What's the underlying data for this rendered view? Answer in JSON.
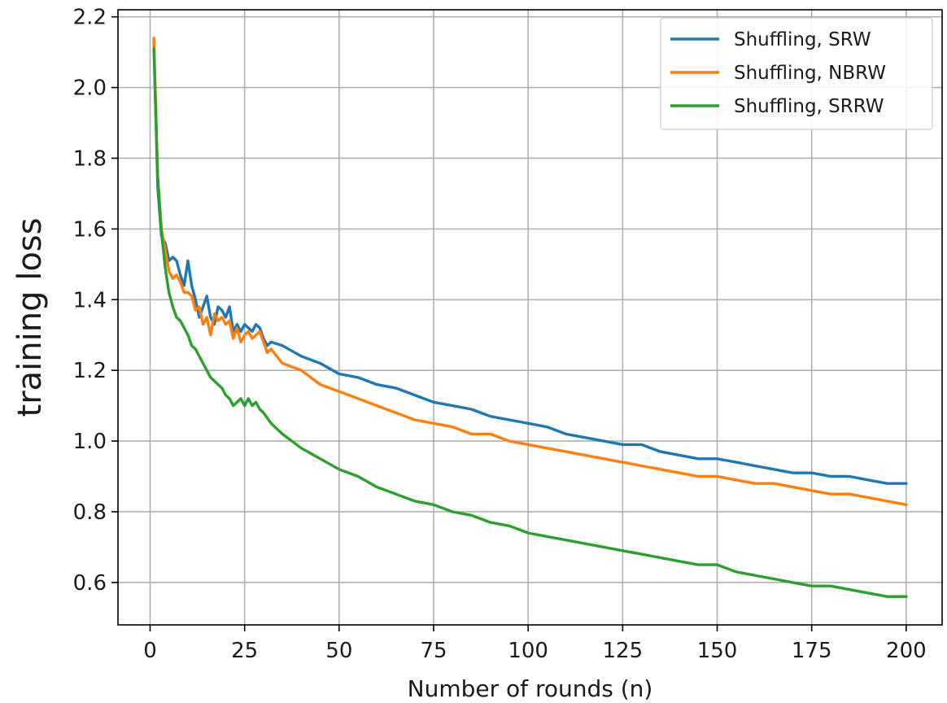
{
  "chart_data": {
    "type": "line",
    "title": "",
    "xlabel": "Number of rounds (n)",
    "ylabel": "training loss",
    "xlim": [
      -8.5,
      209.5
    ],
    "ylim": [
      0.48,
      2.22
    ],
    "xticks": [
      0,
      25,
      50,
      75,
      100,
      125,
      150,
      175,
      200
    ],
    "xtick_labels": [
      "0",
      "25",
      "50",
      "75",
      "100",
      "125",
      "150",
      "175",
      "200"
    ],
    "yticks": [
      0.6,
      0.8,
      1.0,
      1.2,
      1.4,
      1.6,
      1.8,
      2.0,
      2.2
    ],
    "ytick_labels": [
      "0.6",
      "0.8",
      "1.0",
      "1.2",
      "1.4",
      "1.6",
      "1.8",
      "2.0",
      "2.2"
    ],
    "grid": true,
    "legend_position": "top-right",
    "series": [
      {
        "name": "Shuffling, SRW",
        "color": "#1f77b4",
        "x": [
          1,
          2,
          3,
          4,
          5,
          6,
          7,
          8,
          9,
          10,
          11,
          12,
          13,
          14,
          15,
          16,
          17,
          18,
          19,
          20,
          21,
          22,
          23,
          24,
          25,
          26,
          27,
          28,
          29,
          30,
          31,
          32,
          35,
          40,
          45,
          50,
          55,
          60,
          65,
          70,
          75,
          80,
          85,
          90,
          95,
          100,
          105,
          110,
          115,
          120,
          125,
          130,
          135,
          140,
          145,
          150,
          155,
          160,
          165,
          170,
          175,
          180,
          185,
          190,
          195,
          200
        ],
        "y": [
          2.13,
          1.72,
          1.58,
          1.56,
          1.51,
          1.52,
          1.51,
          1.47,
          1.44,
          1.51,
          1.44,
          1.4,
          1.35,
          1.38,
          1.41,
          1.35,
          1.33,
          1.38,
          1.37,
          1.35,
          1.38,
          1.31,
          1.33,
          1.31,
          1.33,
          1.32,
          1.31,
          1.33,
          1.32,
          1.29,
          1.27,
          1.28,
          1.27,
          1.24,
          1.22,
          1.19,
          1.18,
          1.16,
          1.15,
          1.13,
          1.11,
          1.1,
          1.09,
          1.07,
          1.06,
          1.05,
          1.04,
          1.02,
          1.01,
          1.0,
          0.99,
          0.99,
          0.97,
          0.96,
          0.95,
          0.95,
          0.94,
          0.93,
          0.92,
          0.91,
          0.91,
          0.9,
          0.9,
          0.89,
          0.88,
          0.88
        ]
      },
      {
        "name": "Shuffling, NBRW",
        "color": "#ff7f0e",
        "x": [
          1,
          2,
          3,
          4,
          5,
          6,
          7,
          8,
          9,
          10,
          11,
          12,
          13,
          14,
          15,
          16,
          17,
          18,
          19,
          20,
          21,
          22,
          23,
          24,
          25,
          26,
          27,
          28,
          29,
          30,
          31,
          32,
          35,
          40,
          45,
          50,
          55,
          60,
          65,
          70,
          75,
          80,
          85,
          90,
          95,
          100,
          105,
          110,
          115,
          120,
          125,
          130,
          135,
          140,
          145,
          150,
          155,
          160,
          165,
          170,
          175,
          180,
          185,
          190,
          195,
          200
        ],
        "y": [
          2.14,
          1.75,
          1.6,
          1.54,
          1.48,
          1.46,
          1.47,
          1.45,
          1.42,
          1.42,
          1.41,
          1.37,
          1.38,
          1.33,
          1.35,
          1.3,
          1.36,
          1.34,
          1.35,
          1.33,
          1.34,
          1.29,
          1.32,
          1.28,
          1.3,
          1.31,
          1.29,
          1.3,
          1.31,
          1.28,
          1.25,
          1.26,
          1.22,
          1.2,
          1.16,
          1.14,
          1.12,
          1.1,
          1.08,
          1.06,
          1.05,
          1.04,
          1.02,
          1.02,
          1.0,
          0.99,
          0.98,
          0.97,
          0.96,
          0.95,
          0.94,
          0.93,
          0.92,
          0.91,
          0.9,
          0.9,
          0.89,
          0.88,
          0.88,
          0.87,
          0.86,
          0.85,
          0.85,
          0.84,
          0.83,
          0.82
        ]
      },
      {
        "name": "Shuffling, SRRW",
        "color": "#2ca02c",
        "x": [
          1,
          2,
          3,
          4,
          5,
          6,
          7,
          8,
          9,
          10,
          11,
          12,
          13,
          14,
          15,
          16,
          17,
          18,
          19,
          20,
          21,
          22,
          23,
          24,
          25,
          26,
          27,
          28,
          29,
          30,
          32,
          35,
          40,
          45,
          50,
          55,
          60,
          65,
          70,
          75,
          80,
          85,
          90,
          95,
          100,
          105,
          110,
          115,
          120,
          125,
          130,
          135,
          140,
          145,
          150,
          155,
          160,
          165,
          170,
          175,
          180,
          185,
          190,
          195,
          200
        ],
        "y": [
          2.11,
          1.75,
          1.59,
          1.49,
          1.42,
          1.38,
          1.35,
          1.34,
          1.32,
          1.3,
          1.27,
          1.26,
          1.24,
          1.22,
          1.2,
          1.18,
          1.17,
          1.16,
          1.15,
          1.13,
          1.12,
          1.1,
          1.11,
          1.12,
          1.1,
          1.12,
          1.1,
          1.11,
          1.09,
          1.08,
          1.05,
          1.02,
          0.98,
          0.95,
          0.92,
          0.9,
          0.87,
          0.85,
          0.83,
          0.82,
          0.8,
          0.79,
          0.77,
          0.76,
          0.74,
          0.73,
          0.72,
          0.71,
          0.7,
          0.69,
          0.68,
          0.67,
          0.66,
          0.65,
          0.65,
          0.63,
          0.62,
          0.61,
          0.6,
          0.59,
          0.59,
          0.58,
          0.57,
          0.56,
          0.56
        ]
      }
    ]
  }
}
